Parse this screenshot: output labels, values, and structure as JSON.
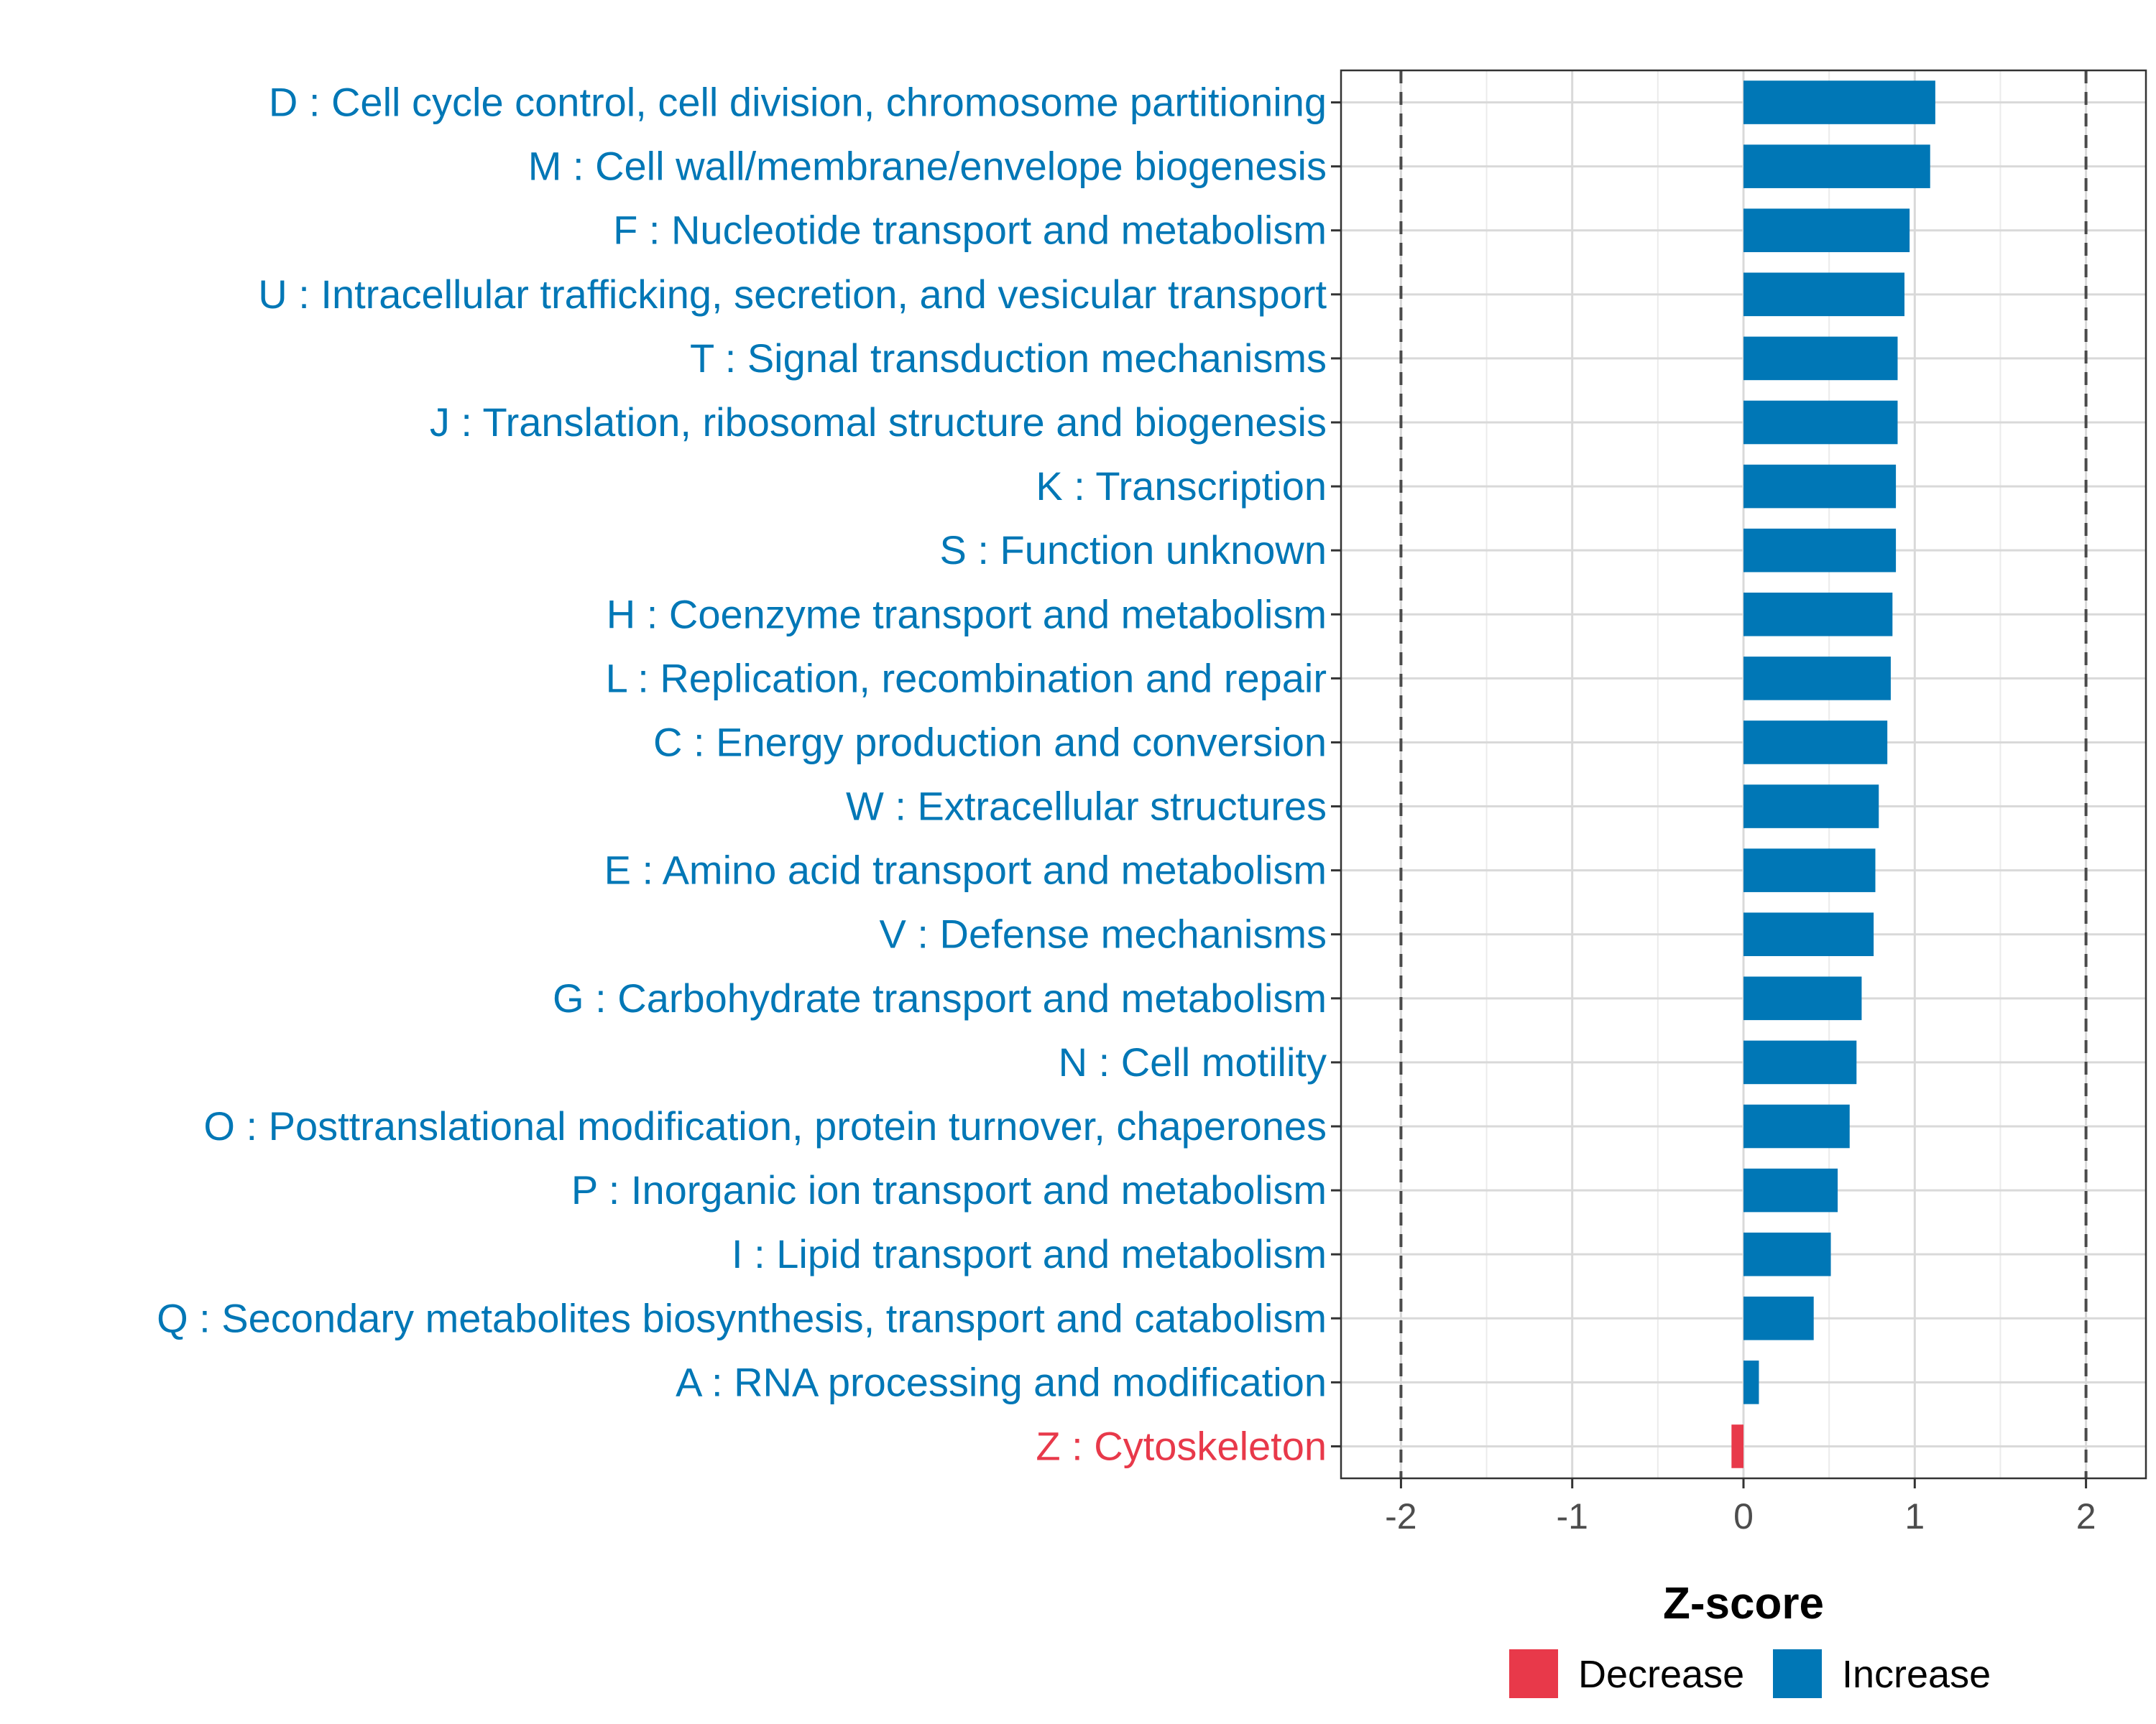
{
  "chart_data": {
    "type": "bar",
    "orientation": "horizontal",
    "title": "",
    "xlabel": "Z-score",
    "ylabel": "",
    "xlim": [
      -2.35,
      2.35
    ],
    "xticks": [
      -2,
      -1,
      0,
      1,
      2
    ],
    "xtick_labels": [
      "-2",
      "-1",
      "0",
      "1",
      "2"
    ],
    "threshold_lines": [
      -2,
      2
    ],
    "grid": true,
    "legend_position": "bottom",
    "categories": [
      "D : Cell cycle control, cell division, chromosome partitioning",
      "M : Cell wall/membrane/envelope biogenesis",
      "F : Nucleotide transport and metabolism",
      "U : Intracellular trafficking, secretion, and vesicular transport",
      "T : Signal transduction mechanisms",
      "J : Translation, ribosomal structure and biogenesis",
      "K : Transcription",
      "S : Function unknown",
      "H : Coenzyme transport and metabolism",
      "L : Replication, recombination and repair",
      "C : Energy production and conversion",
      "W : Extracellular structures",
      "E : Amino acid transport and metabolism",
      "V : Defense mechanisms",
      "G : Carbohydrate transport and metabolism",
      "N : Cell motility",
      "O : Posttranslational modification, protein turnover, chaperones",
      "P : Inorganic ion transport and metabolism",
      "I : Lipid transport and metabolism",
      "Q : Secondary metabolites biosynthesis, transport and catabolism",
      "A : RNA processing and modification",
      "Z : Cytoskeleton"
    ],
    "values": [
      1.12,
      1.09,
      0.97,
      0.94,
      0.9,
      0.9,
      0.89,
      0.89,
      0.87,
      0.86,
      0.84,
      0.79,
      0.77,
      0.76,
      0.69,
      0.66,
      0.62,
      0.55,
      0.51,
      0.41,
      0.09,
      -0.07
    ],
    "groups": [
      "Increase",
      "Increase",
      "Increase",
      "Increase",
      "Increase",
      "Increase",
      "Increase",
      "Increase",
      "Increase",
      "Increase",
      "Increase",
      "Increase",
      "Increase",
      "Increase",
      "Increase",
      "Increase",
      "Increase",
      "Increase",
      "Increase",
      "Increase",
      "Increase",
      "Decrease"
    ],
    "legend": [
      {
        "name": "Decrease",
        "color": "#e8394a"
      },
      {
        "name": "Increase",
        "color": "#0077b6"
      }
    ]
  }
}
